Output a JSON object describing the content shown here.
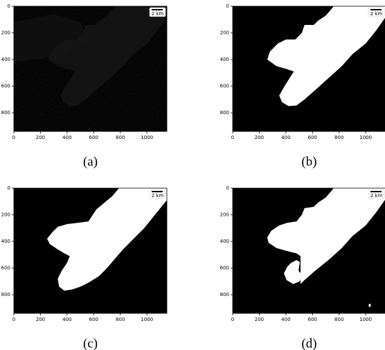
{
  "chart_data": [
    {
      "type": "image",
      "caption": "(a)",
      "scale_label": "2 km",
      "xlim": [
        0,
        1150
      ],
      "ylim": [
        940,
        0
      ],
      "xticks": [
        0,
        200,
        400,
        600,
        800,
        1000
      ],
      "yticks": [
        0,
        200,
        400,
        600,
        800
      ]
    },
    {
      "type": "image",
      "caption": "(b)",
      "scale_label": "2 km",
      "xlim": [
        0,
        1150
      ],
      "ylim": [
        940,
        0
      ],
      "xticks": [
        0,
        200,
        400,
        600,
        800,
        1000
      ],
      "yticks": [
        0,
        200,
        400,
        600,
        800
      ]
    },
    {
      "type": "image",
      "caption": "(c)",
      "scale_label": "2 km",
      "xlim": [
        0,
        1150
      ],
      "ylim": [
        940,
        0
      ],
      "xticks": [
        0,
        200,
        400,
        600,
        800,
        1000
      ],
      "yticks": [
        0,
        200,
        400,
        600,
        800
      ]
    },
    {
      "type": "image",
      "caption": "(d)",
      "scale_label": "2 km",
      "xlim": [
        0,
        1150
      ],
      "ylim": [
        940,
        0
      ],
      "xticks": [
        0,
        200,
        400,
        600,
        800,
        1000
      ],
      "yticks": [
        0,
        200,
        400,
        600,
        800
      ]
    }
  ]
}
